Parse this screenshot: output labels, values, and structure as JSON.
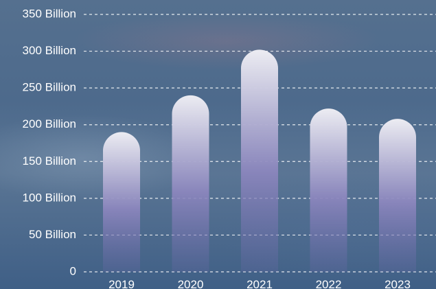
{
  "chart_data": {
    "type": "bar",
    "title": "",
    "xlabel": "",
    "ylabel": "",
    "categories": [
      "2019",
      "2020",
      "2021",
      "2022",
      "2023"
    ],
    "values": [
      190,
      240,
      302,
      222,
      208
    ],
    "ylim": [
      0,
      350
    ],
    "yticks": [
      0,
      50,
      100,
      150,
      200,
      250,
      300,
      350
    ],
    "ytick_labels": [
      "0",
      "50 Billion",
      "100 Billion",
      "150 Billion",
      "200 Billion",
      "250 Billion",
      "300 Billion",
      "350 Billion"
    ],
    "grid": true,
    "legend": "none",
    "colors": {
      "bar_top": "#ececf2",
      "bar_bottom": "#6a68a8",
      "grid": "#ffffff",
      "text": "#ffffff"
    }
  }
}
